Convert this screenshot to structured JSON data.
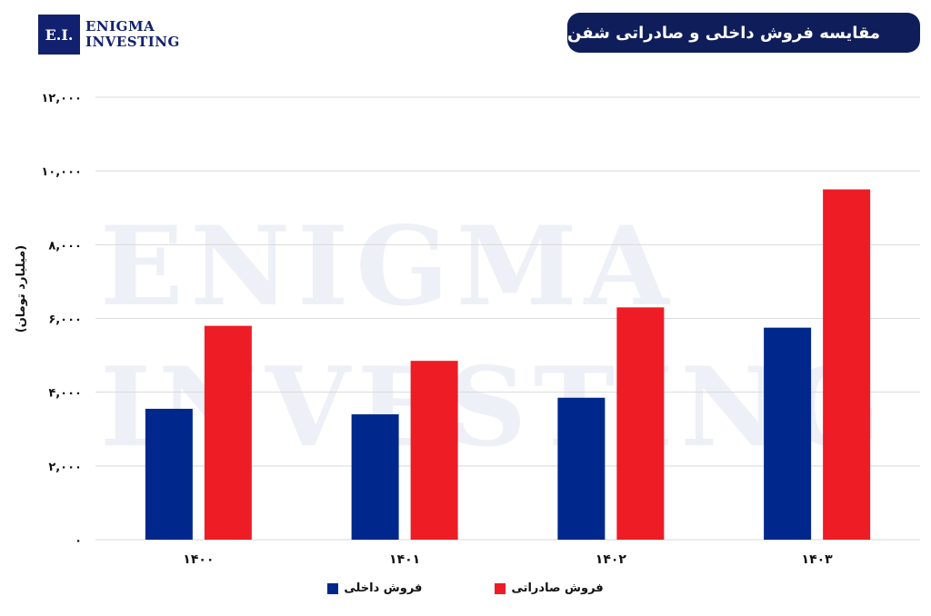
{
  "logo": {
    "mark": "E.I.",
    "line1": "Enigma",
    "line2": "Investing"
  },
  "watermark": {
    "line1": "Enigma",
    "line2": "Investing"
  },
  "chart_data": {
    "type": "bar",
    "title": "مقایسه فروش داخلی و صادراتی شفن",
    "ylabel": "(میلیارد تومان)",
    "xlabel": "",
    "categories": [
      "۱۴۰۰",
      "۱۴۰۱",
      "۱۴۰۲",
      "۱۴۰۳"
    ],
    "ylim": [
      0,
      12000
    ],
    "yticks": [
      0,
      2000,
      4000,
      6000,
      8000,
      10000,
      12000
    ],
    "ytick_labels": [
      "۰",
      "۲,۰۰۰",
      "۴,۰۰۰",
      "۶,۰۰۰",
      "۸,۰۰۰",
      "۱۰,۰۰۰",
      "۱۲,۰۰۰"
    ],
    "grid": true,
    "legend_position": "bottom",
    "series": [
      {
        "name": "فروش داخلی",
        "color": "#00288c",
        "values": [
          3550,
          3400,
          3850,
          5750
        ]
      },
      {
        "name": "فروش صادراتی",
        "color": "#ee1c25",
        "values": [
          5800,
          4850,
          6300,
          9500
        ]
      }
    ]
  }
}
